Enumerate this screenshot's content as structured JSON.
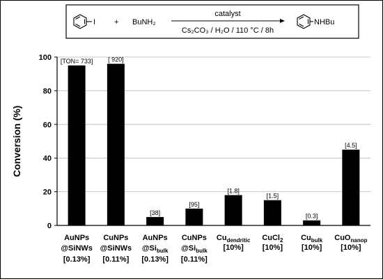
{
  "reaction": {
    "reactant_label": "I",
    "plus": "+",
    "reagent": "BuNH₂",
    "catalyst": "catalyst",
    "conditions": "Cs₂CO₃ / H₂O / 110 °C / 8h",
    "product_label": "NHBu"
  },
  "chart_data": {
    "type": "bar",
    "title": "",
    "xlabel": "",
    "ylabel": "Conversion (%)",
    "ylim": [
      0,
      100
    ],
    "yticks": [
      0,
      20,
      40,
      60,
      80,
      100
    ],
    "grid": true,
    "bar_color": "#000000",
    "categories": [
      {
        "name": "AuNPs",
        "sub": "",
        "line2": "@SiNWs",
        "line2_sub": "",
        "loading": "[0.13%]"
      },
      {
        "name": "CuNPs",
        "sub": "",
        "line2": "@SiNWs",
        "line2_sub": "",
        "loading": "[0.11%]"
      },
      {
        "name": "AuNPs",
        "sub": "",
        "line2": "@Si",
        "line2_sub": "bulk",
        "loading": "[0.13%]"
      },
      {
        "name": "CuNPs",
        "sub": "",
        "line2": "@Si",
        "line2_sub": "bulk",
        "loading": "[0.11%]"
      },
      {
        "name": "Cu",
        "sub": "dendritic",
        "line2": "",
        "line2_sub": "",
        "loading": "[10%]"
      },
      {
        "name": "CuCl",
        "sub": "2",
        "line2": "",
        "line2_sub": "",
        "loading": "[10%]"
      },
      {
        "name": "Cu",
        "sub": "bulk",
        "line2": "",
        "line2_sub": "",
        "loading": "[10%]"
      },
      {
        "name": "CuO",
        "sub": "nanop",
        "line2": "",
        "line2_sub": "",
        "loading": "[10%]"
      }
    ],
    "values": [
      95,
      96,
      5,
      10,
      18,
      15,
      3,
      45
    ],
    "annotations": [
      "[TON= 733]",
      "[ 920]",
      "[38]",
      "[95]",
      "[1.8]",
      "[1.5]",
      "[0.3]",
      "[4.5]"
    ]
  }
}
